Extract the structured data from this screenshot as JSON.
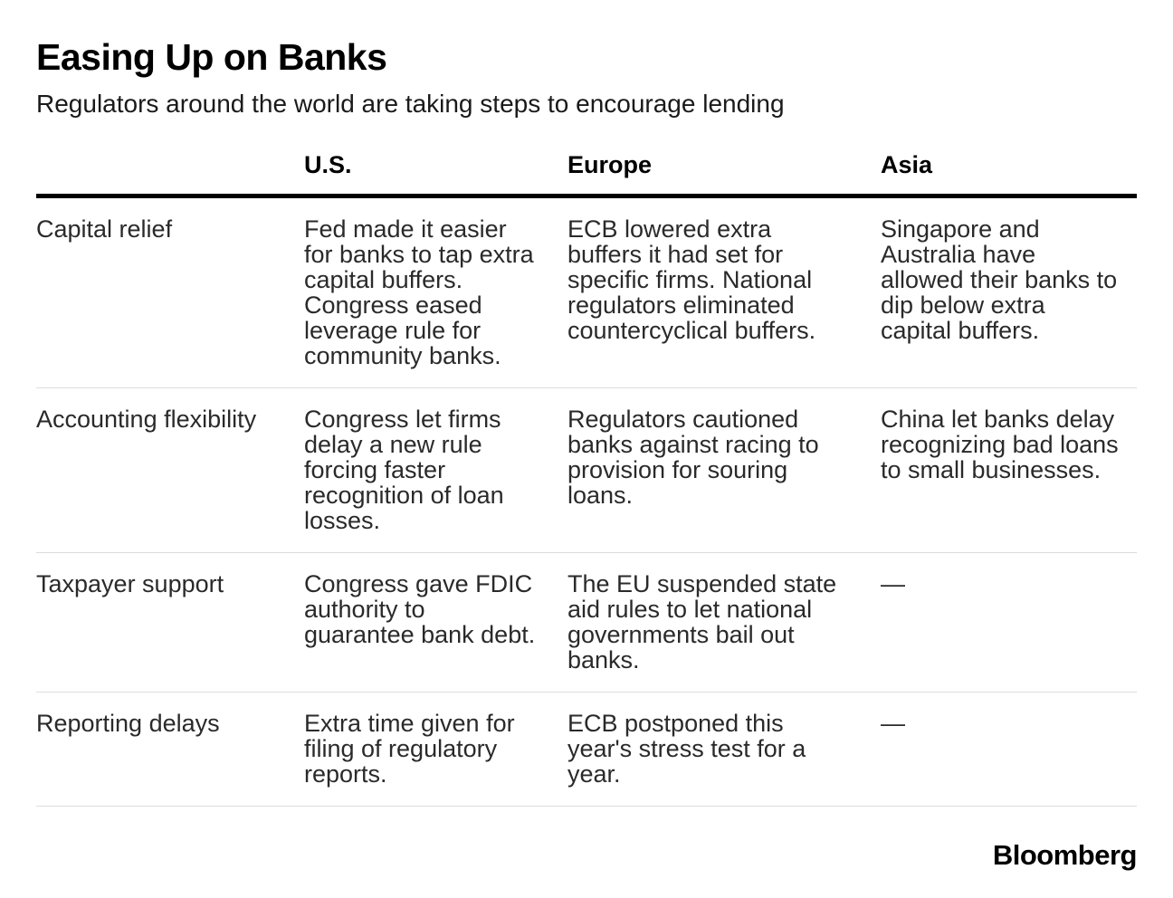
{
  "chart_data": {
    "type": "table",
    "title": "Easing Up on Banks",
    "subtitle": "Regulators around the world are taking steps to encourage lending",
    "columns": [
      "U.S.",
      "Europe",
      "Asia"
    ],
    "rows": [
      {
        "category": "Capital relief",
        "us": "Fed made it easier for banks to tap extra capital buffers. Congress eased leverage rule for community banks.",
        "europe": "ECB lowered extra buffers it had set for specific firms. National regulators eliminated countercyclical buffers.",
        "asia": "Singapore and Australia have allowed their banks to dip below extra capital buffers."
      },
      {
        "category": "Accounting flexibility",
        "us": "Congress let firms delay a new rule forcing faster recognition of loan losses.",
        "europe": "Regulators cautioned banks against racing to provision for souring loans.",
        "asia": "China let banks delay recognizing bad loans to small businesses."
      },
      {
        "category": "Taxpayer support",
        "us": "Congress gave FDIC authority to guarantee bank debt.",
        "europe": "The EU suspended state aid rules to let national governments bail out banks.",
        "asia": "—"
      },
      {
        "category": "Reporting delays",
        "us": "Extra time given for filing of regulatory reports.",
        "europe": "ECB postponed this year's stress test for a year.",
        "asia": "—"
      }
    ]
  },
  "footer": {
    "brand": "Bloomberg"
  },
  "colors": {
    "background": "#ffffff",
    "title_text": "#000000",
    "body_text": "#2a2a2a",
    "header_rule": "#000000",
    "row_divider": "#dcdcdc"
  }
}
